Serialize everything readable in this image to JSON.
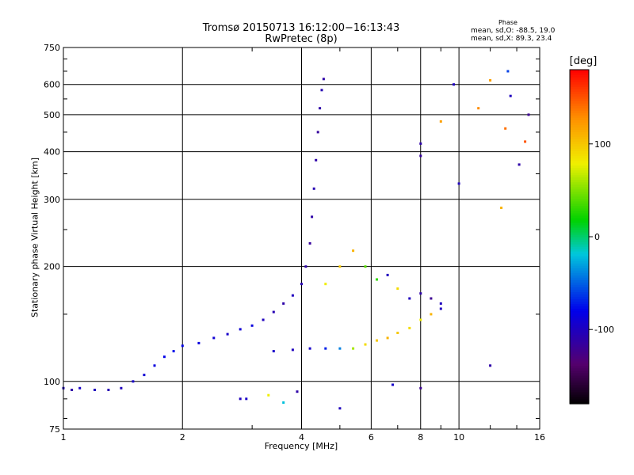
{
  "header": {
    "title": "Tromsø 20150713 16:12:00−16:13:43",
    "subtitle": "RwPretec (8p)",
    "phase_title": "Phase",
    "phase_o": "mean, sd,O: -88.5, 19.0",
    "phase_x": "mean, sd,X:  89.3, 23.4"
  },
  "colorbar": {
    "unit": "[deg]",
    "min": -180,
    "max": 180,
    "ticks": [
      100,
      0,
      -100
    ],
    "tick_labels": [
      "100",
      "0",
      "-100"
    ]
  },
  "chart_data": {
    "type": "scatter",
    "xlabel": "Frequency [MHz]",
    "ylabel": "Stationary phase Virtual Height [km]",
    "xscale": "log",
    "yscale": "log",
    "xlim": [
      1,
      16
    ],
    "ylim": [
      75,
      750
    ],
    "xticks": [
      1,
      2,
      4,
      6,
      8,
      10,
      16
    ],
    "xtick_labels": [
      "1",
      "2",
      "4",
      "6",
      "8",
      "10",
      "16"
    ],
    "yticks": [
      75,
      100,
      200,
      300,
      400,
      500,
      600,
      750
    ],
    "ytick_labels": [
      "75",
      "100",
      "200",
      "300",
      "400",
      "500",
      "600",
      "750"
    ],
    "grid": true,
    "points": [
      {
        "x": 1.0,
        "y": 96,
        "phase": -100
      },
      {
        "x": 1.05,
        "y": 95,
        "phase": -110
      },
      {
        "x": 1.1,
        "y": 96,
        "phase": -95
      },
      {
        "x": 1.2,
        "y": 95,
        "phase": -100
      },
      {
        "x": 1.3,
        "y": 95,
        "phase": -105
      },
      {
        "x": 1.4,
        "y": 96,
        "phase": -100
      },
      {
        "x": 1.5,
        "y": 100,
        "phase": -95
      },
      {
        "x": 1.6,
        "y": 104,
        "phase": -90
      },
      {
        "x": 1.7,
        "y": 110,
        "phase": -85
      },
      {
        "x": 1.8,
        "y": 116,
        "phase": -80
      },
      {
        "x": 1.9,
        "y": 120,
        "phase": -75
      },
      {
        "x": 2.0,
        "y": 124,
        "phase": -80
      },
      {
        "x": 2.2,
        "y": 126,
        "phase": -85
      },
      {
        "x": 2.4,
        "y": 130,
        "phase": -90
      },
      {
        "x": 2.6,
        "y": 133,
        "phase": -95
      },
      {
        "x": 2.8,
        "y": 137,
        "phase": -90
      },
      {
        "x": 3.0,
        "y": 140,
        "phase": -85
      },
      {
        "x": 3.2,
        "y": 145,
        "phase": -100
      },
      {
        "x": 3.4,
        "y": 152,
        "phase": -105
      },
      {
        "x": 3.6,
        "y": 160,
        "phase": -110
      },
      {
        "x": 3.8,
        "y": 168,
        "phase": -100
      },
      {
        "x": 4.0,
        "y": 180,
        "phase": -105
      },
      {
        "x": 4.1,
        "y": 200,
        "phase": -110
      },
      {
        "x": 4.2,
        "y": 230,
        "phase": -115
      },
      {
        "x": 4.25,
        "y": 270,
        "phase": -110
      },
      {
        "x": 4.3,
        "y": 320,
        "phase": -105
      },
      {
        "x": 4.35,
        "y": 380,
        "phase": -110
      },
      {
        "x": 4.4,
        "y": 450,
        "phase": -115
      },
      {
        "x": 4.45,
        "y": 520,
        "phase": -110
      },
      {
        "x": 4.5,
        "y": 580,
        "phase": -105
      },
      {
        "x": 4.55,
        "y": 620,
        "phase": -110
      },
      {
        "x": 3.4,
        "y": 120,
        "phase": -95
      },
      {
        "x": 3.8,
        "y": 121,
        "phase": -100
      },
      {
        "x": 4.2,
        "y": 122,
        "phase": -95
      },
      {
        "x": 4.6,
        "y": 122,
        "phase": -70
      },
      {
        "x": 5.0,
        "y": 122,
        "phase": -40
      },
      {
        "x": 5.4,
        "y": 122,
        "phase": 60
      },
      {
        "x": 5.8,
        "y": 125,
        "phase": 90
      },
      {
        "x": 6.2,
        "y": 128,
        "phase": 100
      },
      {
        "x": 6.6,
        "y": 130,
        "phase": 110
      },
      {
        "x": 7.0,
        "y": 134,
        "phase": 100
      },
      {
        "x": 7.5,
        "y": 138,
        "phase": 90
      },
      {
        "x": 8.0,
        "y": 145,
        "phase": 80
      },
      {
        "x": 8.5,
        "y": 150,
        "phase": 110
      },
      {
        "x": 9.0,
        "y": 155,
        "phase": -100
      },
      {
        "x": 4.6,
        "y": 180,
        "phase": 80
      },
      {
        "x": 5.0,
        "y": 200,
        "phase": 100
      },
      {
        "x": 5.4,
        "y": 220,
        "phase": 110
      },
      {
        "x": 5.8,
        "y": 200,
        "phase": 40
      },
      {
        "x": 6.2,
        "y": 185,
        "phase": 30
      },
      {
        "x": 6.6,
        "y": 190,
        "phase": -100
      },
      {
        "x": 7.0,
        "y": 175,
        "phase": 90
      },
      {
        "x": 7.5,
        "y": 165,
        "phase": -100
      },
      {
        "x": 8.0,
        "y": 170,
        "phase": -110
      },
      {
        "x": 8.5,
        "y": 165,
        "phase": -120
      },
      {
        "x": 9.0,
        "y": 160,
        "phase": -100
      },
      {
        "x": 2.8,
        "y": 90,
        "phase": -100
      },
      {
        "x": 2.9,
        "y": 90,
        "phase": -95
      },
      {
        "x": 3.3,
        "y": 92,
        "phase": 80
      },
      {
        "x": 3.6,
        "y": 88,
        "phase": -20
      },
      {
        "x": 3.9,
        "y": 94,
        "phase": -110
      },
      {
        "x": 5.0,
        "y": 85,
        "phase": -100
      },
      {
        "x": 6.8,
        "y": 98,
        "phase": -95
      },
      {
        "x": 8.0,
        "y": 96,
        "phase": -120
      },
      {
        "x": 8.0,
        "y": 420,
        "phase": -110
      },
      {
        "x": 8.0,
        "y": 390,
        "phase": -115
      },
      {
        "x": 9.0,
        "y": 480,
        "phase": 120
      },
      {
        "x": 9.7,
        "y": 600,
        "phase": -100
      },
      {
        "x": 10.0,
        "y": 330,
        "phase": -100
      },
      {
        "x": 11.2,
        "y": 520,
        "phase": 130
      },
      {
        "x": 12.0,
        "y": 615,
        "phase": 120
      },
      {
        "x": 12.8,
        "y": 285,
        "phase": 110
      },
      {
        "x": 13.1,
        "y": 460,
        "phase": 140
      },
      {
        "x": 13.3,
        "y": 650,
        "phase": -60
      },
      {
        "x": 13.5,
        "y": 560,
        "phase": -100
      },
      {
        "x": 14.2,
        "y": 370,
        "phase": -110
      },
      {
        "x": 14.7,
        "y": 425,
        "phase": 150
      },
      {
        "x": 15.0,
        "y": 500,
        "phase": -120
      },
      {
        "x": 12.0,
        "y": 110,
        "phase": -110
      }
    ]
  }
}
